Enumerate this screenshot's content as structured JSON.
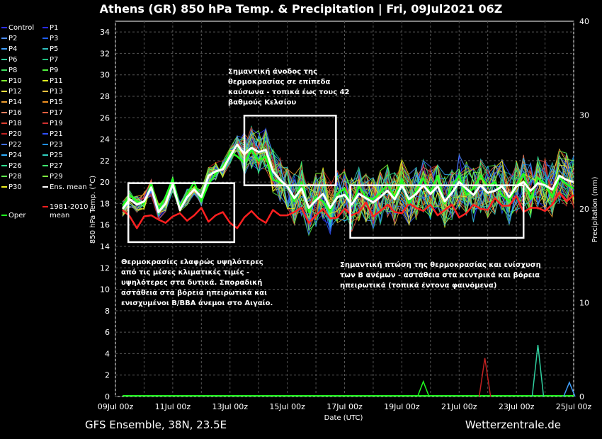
{
  "title": "Athens  (GR)  850 hPa Temp. & Precipitation | Fri, 09Jul2021 06Z",
  "footer": {
    "left": "GFS Ensemble, 38N, 23.5E",
    "right": "Wetterzentrale.de"
  },
  "legend": [
    {
      "label": "Control",
      "color": "#3030ff"
    },
    {
      "label": "P1",
      "color": "#2a2aff"
    },
    {
      "label": "P2",
      "color": "#5090ff"
    },
    {
      "label": "P3",
      "color": "#2060ff"
    },
    {
      "label": "P4",
      "color": "#40a0ff"
    },
    {
      "label": "P5",
      "color": "#30c0c0"
    },
    {
      "label": "P6",
      "color": "#30d0a0"
    },
    {
      "label": "P7",
      "color": "#20c080"
    },
    {
      "label": "P8",
      "color": "#40e060"
    },
    {
      "label": "P9",
      "color": "#50f040"
    },
    {
      "label": "P10",
      "color": "#80ff30"
    },
    {
      "label": "P11",
      "color": "#e0f020"
    },
    {
      "label": "P12",
      "color": "#f0e040"
    },
    {
      "label": "P13",
      "color": "#f0c040"
    },
    {
      "label": "P14",
      "color": "#f0a030"
    },
    {
      "label": "P15",
      "color": "#f09020"
    },
    {
      "label": "P16",
      "color": "#f08060"
    },
    {
      "label": "P17",
      "color": "#f06040"
    },
    {
      "label": "P18",
      "color": "#e04030"
    },
    {
      "label": "P19",
      "color": "#d03030"
    },
    {
      "label": "P20",
      "color": "#c02020"
    },
    {
      "label": "P21",
      "color": "#3050ff"
    },
    {
      "label": "P22",
      "color": "#4070ff"
    },
    {
      "label": "P23",
      "color": "#2090ff"
    },
    {
      "label": "P24",
      "color": "#30b0ff"
    },
    {
      "label": "P25",
      "color": "#30d0c0"
    },
    {
      "label": "P26",
      "color": "#30e090"
    },
    {
      "label": "P27",
      "color": "#40f070"
    },
    {
      "label": "P28",
      "color": "#60ff50"
    },
    {
      "label": "P29",
      "color": "#80ff40"
    },
    {
      "label": "P30",
      "color": "#f0f020"
    },
    {
      "label": "Ens. mean",
      "color": "#ffffff"
    },
    {
      "label": "Oper",
      "color": "#20ff20"
    },
    {
      "label": "1981-2010 mean",
      "color": "#ff2020"
    }
  ],
  "annotations": {
    "top": [
      "Σημαντική άνοδος της",
      "θερμοκρασίας σε επίπεδα",
      "καύσωνα - τοπικά έως τους 42",
      "βαθμούς Κελσίου"
    ],
    "left": [
      "Θερμοκρασίες ελαφρώς υψηλότερες",
      "από τις μέσες κλιματικές τιμές -",
      "υψηλότερες στα δυτικά. Σποραδική",
      "αστάθεια στα βόρεια ηπειρωτικά και",
      "ενισχυμένοι Β/ΒΒΑ άνεμοι στο Αιγαίο."
    ],
    "right": [
      "Σημαντική πτώση της θερμοκρασίας και ενίσχυση",
      "των Β ανέμων - αστάθεια στα κεντρικά και βόρεια",
      "ηπειρωτικά (τοπικά έντονα φαινόμενα)"
    ]
  },
  "chart_data": {
    "type": "line",
    "xlabel": "Date (UTC)",
    "ylabel": "850 hPa Temp. (°C)",
    "y2label": "Precipitation (mm)",
    "ylim": [
      0,
      35
    ],
    "y2lim": [
      0,
      40
    ],
    "xticks": [
      "09Jul 00z",
      "11Jul 00z",
      "13Jul 00z",
      "15Jul 00z",
      "17Jul 00z",
      "19Jul 00z",
      "21Jul 00z",
      "23Jul 00z",
      "25Jul 00z"
    ],
    "yticks": [
      0,
      2,
      4,
      6,
      8,
      10,
      12,
      14,
      16,
      18,
      20,
      22,
      24,
      26,
      28,
      30,
      32,
      34
    ],
    "y2ticks": [
      0,
      10,
      20,
      30,
      40
    ],
    "grid": true,
    "x_days": [
      0.25,
      0.5,
      0.75,
      1,
      1.25,
      1.5,
      1.75,
      2,
      2.25,
      2.5,
      2.75,
      3,
      3.25,
      3.5,
      3.75,
      4,
      4.25,
      4.5,
      4.75,
      5,
      5.25,
      5.5,
      5.75,
      6,
      6.25,
      6.5,
      6.75,
      7,
      7.25,
      7.5,
      7.75,
      8,
      8.25,
      8.5,
      8.75,
      9,
      9.25,
      9.5,
      9.75,
      10,
      10.25,
      10.5,
      10.75,
      11,
      11.25,
      11.5,
      11.75,
      12,
      12.25,
      12.5,
      12.75,
      13,
      13.25,
      13.5,
      13.75,
      14,
      14.25,
      14.5,
      14.75,
      15,
      15.25,
      15.5,
      15.75,
      16
    ],
    "series": [
      {
        "name": "Ens. mean",
        "color": "#ffffff",
        "width": 3,
        "values": [
          17.5,
          18.4,
          17.9,
          18.2,
          19.5,
          17.2,
          18.0,
          19.8,
          17.4,
          18.6,
          19.3,
          18.6,
          20.6,
          21.0,
          21.2,
          22.4,
          23.5,
          22.6,
          23.2,
          22.8,
          23.0,
          21.0,
          20.2,
          19.6,
          18.5,
          19.4,
          17.6,
          18.3,
          18.9,
          17.6,
          18.6,
          18.8,
          17.9,
          18.9,
          18.5,
          18.1,
          18.6,
          19.2,
          18.4,
          19.7,
          18.4,
          18.9,
          19.7,
          18.9,
          19.6,
          18.2,
          19.0,
          20.0,
          19.4,
          18.8,
          19.7,
          19.0,
          19.2,
          19.6,
          18.6,
          19.6,
          20.0,
          19.2,
          19.9,
          19.7,
          19.3,
          20.6,
          20.2,
          20.0
        ]
      },
      {
        "name": "Oper",
        "color": "#20ff20",
        "width": 2.5,
        "values": [
          17.8,
          18.8,
          18.2,
          18.0,
          19.9,
          17.4,
          18.6,
          20.3,
          17.6,
          18.9,
          20.0,
          18.2,
          19.8,
          20.8,
          21.4,
          22.8,
          22.4,
          21.8,
          23.0,
          22.0,
          22.4,
          20.2,
          20.0,
          19.6,
          18.2,
          20.0,
          17.2,
          18.6,
          18.2,
          17.2,
          18.9,
          19.4,
          17.8,
          19.6,
          18.6,
          18.4,
          19.0,
          19.8,
          18.6,
          20.2,
          18.0,
          19.2,
          20.4,
          19.0,
          20.6,
          18.0,
          19.6,
          20.6,
          18.8,
          19.4,
          20.6,
          19.6,
          20.0,
          18.8,
          18.2,
          19.6,
          20.8,
          18.4,
          20.4,
          19.8,
          18.6,
          20.4,
          19.8,
          19.4
        ]
      },
      {
        "name": "1981-2010 mean",
        "color": "#ff2020",
        "width": 2.5,
        "values": [
          17.4,
          16.8,
          15.7,
          16.8,
          16.9,
          16.5,
          16.2,
          16.8,
          17.1,
          16.4,
          16.9,
          17.6,
          16.3,
          16.9,
          17.2,
          16.2,
          15.7,
          16.7,
          17.3,
          16.6,
          16.2,
          17.4,
          16.9,
          16.9,
          17.2,
          17.6,
          16.2,
          16.9,
          17.5,
          16.6,
          16.7,
          17.5,
          16.9,
          17.2,
          18.1,
          16.8,
          17.3,
          17.9,
          17.2,
          17.1,
          18.0,
          17.6,
          17.3,
          17.9,
          16.9,
          17.4,
          17.9,
          16.7,
          17.1,
          17.9,
          17.5,
          17.4,
          18.5,
          17.8,
          17.8,
          18.7,
          17.2,
          17.6,
          17.6,
          17.3,
          17.9,
          19.0,
          18.2,
          18.8
        ]
      }
    ],
    "precip_mm": [
      {
        "day": 10.75,
        "value": 1.6,
        "color": "#20ff20"
      },
      {
        "day": 12.9,
        "value": 4.1,
        "color": "#c02020"
      },
      {
        "day": 14.75,
        "value": 5.5,
        "color": "#30d0a0"
      },
      {
        "day": 15.85,
        "value": 1.5,
        "color": "#40a0ff"
      }
    ]
  }
}
